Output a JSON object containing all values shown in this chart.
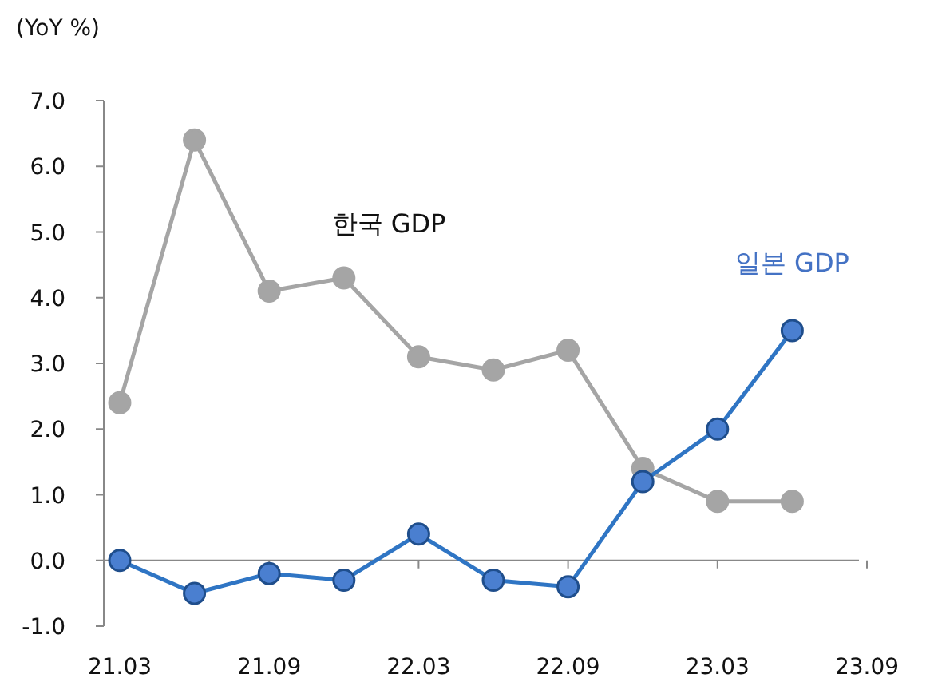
{
  "chart_data": {
    "type": "line",
    "ylabel": "(YoY %)",
    "categories": [
      "21.03",
      null,
      "21.09",
      null,
      "22.03",
      null,
      "22.09",
      null,
      "23.03",
      null,
      "23.09"
    ],
    "series": [
      {
        "name": "한국 GDP",
        "color": "#a5a5a5",
        "values": [
          2.4,
          6.4,
          4.1,
          4.3,
          3.1,
          2.9,
          3.2,
          1.4,
          0.9,
          0.9,
          null
        ]
      },
      {
        "name": "일본 GDP",
        "color": "#2f75c4",
        "values": [
          0.0,
          -0.5,
          -0.2,
          -0.3,
          0.4,
          -0.3,
          -0.4,
          1.2,
          2.0,
          3.5,
          null
        ]
      }
    ],
    "ylim": [
      -1,
      7
    ],
    "yticks": [
      {
        "value": -1,
        "label": "-1.0"
      },
      {
        "value": 0,
        "label": "0.0"
      },
      {
        "value": 1,
        "label": "1.0"
      },
      {
        "value": 2,
        "label": "2.0"
      },
      {
        "value": 3,
        "label": "3.0"
      },
      {
        "value": 4,
        "label": "4.0"
      },
      {
        "value": 5,
        "label": "5.0"
      },
      {
        "value": 6,
        "label": "6.0"
      },
      {
        "value": 7,
        "label": "7.0"
      }
    ],
    "marker": "circle",
    "line_style": "solid",
    "legend": false
  }
}
